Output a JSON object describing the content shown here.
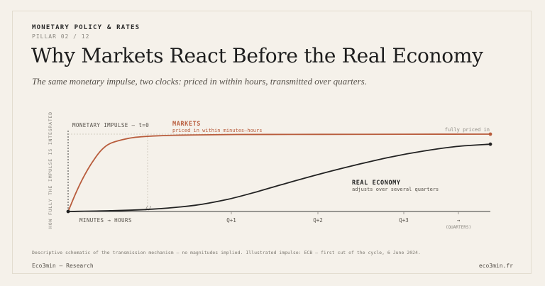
{
  "header": {
    "eyebrow": "MONETARY POLICY & RATES",
    "pillar": "PILLAR 02 / 12",
    "title": "Why Markets React Before the Real Economy",
    "subtitle": "The same monetary impulse, two clocks: priced in within hours, transmitted over quarters."
  },
  "chart_data": {
    "type": "line",
    "ylabel": "HOW FULLY THE IMPULSE IS INTEGRATED",
    "x_axis": {
      "label_left": "MINUTES → HOURS",
      "break_marker": "//",
      "ticks": [
        "Q+1",
        "Q+2",
        "Q+3"
      ],
      "arrow": "→",
      "unit": "(QUARTERS)"
    },
    "annotations": {
      "impulse": "MONETARY IMPULSE — t=0",
      "fully_priced": "fully priced in"
    },
    "series": [
      {
        "name": "MARKETS",
        "subtitle": "priced in within minutes–hours",
        "color": "#b85c3c",
        "x": [
          0,
          0.02,
          0.04,
          0.06,
          0.08,
          0.1,
          0.13,
          0.16,
          0.2,
          0.25,
          0.3,
          0.4,
          0.6,
          0.8,
          1.0
        ],
        "y": [
          0,
          0.26,
          0.48,
          0.66,
          0.8,
          0.88,
          0.93,
          0.96,
          0.975,
          0.985,
          0.99,
          0.995,
          0.997,
          0.999,
          1.0
        ]
      },
      {
        "name": "REAL ECONOMY",
        "subtitle": "adjusts over several quarters",
        "color": "#222222",
        "x": [
          0,
          0.1,
          0.2,
          0.3,
          0.38,
          0.45,
          0.52,
          0.6,
          0.68,
          0.76,
          0.84,
          0.92,
          1.0
        ],
        "y": [
          0,
          0.01,
          0.03,
          0.08,
          0.16,
          0.26,
          0.37,
          0.49,
          0.6,
          0.7,
          0.78,
          0.84,
          0.87
        ]
      }
    ],
    "colors": {
      "grid": "#c9c3b6",
      "axis": "#3a3a3a",
      "muted": "#8a8780"
    }
  },
  "footer": {
    "note": "Descriptive schematic of the transmission mechanism — no magnitudes implied. Illustrated impulse: ECB — first cut of the cycle, 6 June 2024.",
    "brand": "Eco3min — Research",
    "url": "eco3min.fr"
  }
}
